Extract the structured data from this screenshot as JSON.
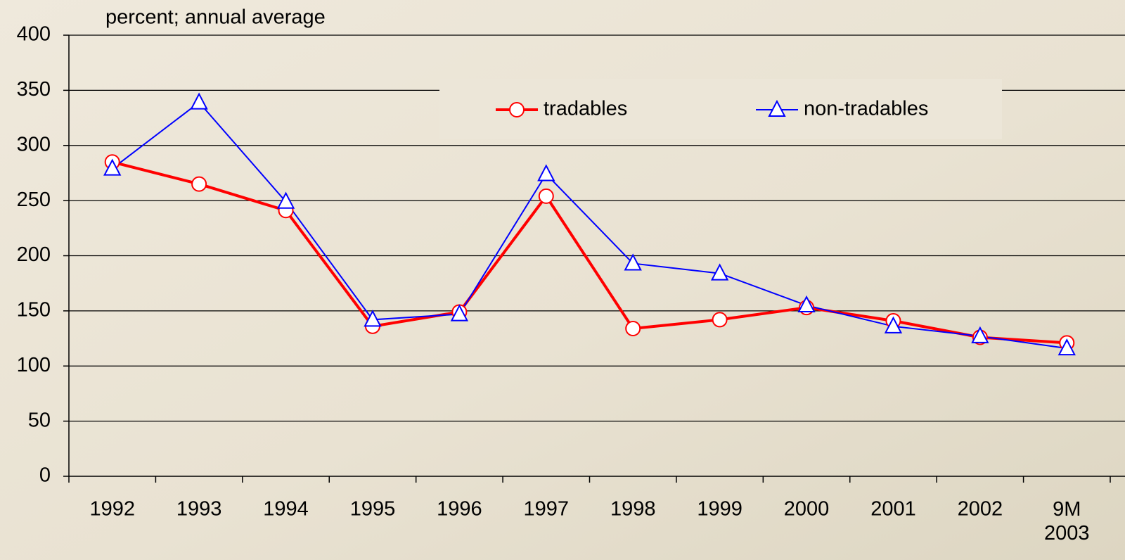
{
  "chart_data": {
    "type": "line",
    "y_label": "percent; annual average",
    "categories": [
      "1992",
      "1993",
      "1994",
      "1995",
      "1996",
      "1997",
      "1998",
      "1999",
      "2000",
      "2001",
      "2002",
      "9M\n2003"
    ],
    "series": [
      {
        "name": "tradables",
        "color": "#ff0000",
        "marker": "circle",
        "values": [
          285,
          265,
          241,
          136,
          149,
          254,
          134,
          142,
          153,
          141,
          126,
          121
        ]
      },
      {
        "name": "non-tradables",
        "color": "#0000ff",
        "marker": "triangle",
        "values": [
          279,
          339,
          249,
          142,
          147,
          274,
          193,
          184,
          155,
          136,
          127,
          116
        ]
      }
    ],
    "ylim": [
      0,
      400
    ],
    "yticks": [
      0,
      50,
      100,
      150,
      200,
      250,
      300,
      350,
      400
    ],
    "grid": true
  }
}
